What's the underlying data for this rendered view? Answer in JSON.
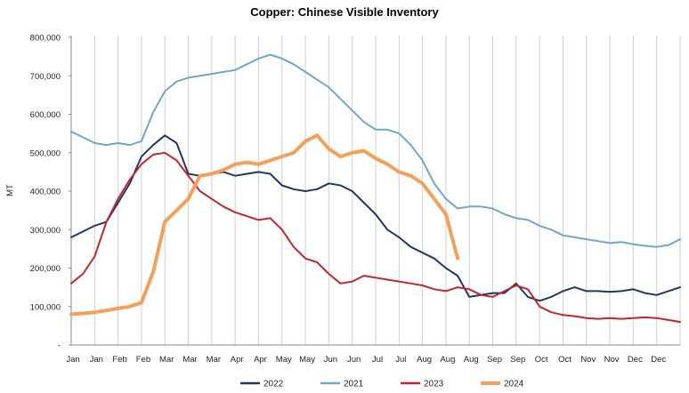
{
  "chart_data": {
    "type": "line",
    "title": "Copper: Chinese Visible Inventory",
    "xlabel": "",
    "ylabel": "MT",
    "ylim": [
      0,
      800000
    ],
    "yticks": [
      0,
      100000,
      200000,
      300000,
      400000,
      500000,
      600000,
      700000,
      800000
    ],
    "ytick_labels": [
      "-",
      "100,000",
      "200,000",
      "300,000",
      "400,000",
      "500,000",
      "600,000",
      "700,000",
      "800,000"
    ],
    "xlim": [
      0,
      52
    ],
    "xtick_labels": [
      "Jan",
      "Jan",
      "Feb",
      "Feb",
      "Mar",
      "Mar",
      "Mar",
      "Apr",
      "Apr",
      "May",
      "May",
      "Jun",
      "Jun",
      "Jul",
      "Jul",
      "Aug",
      "Aug",
      "Aug",
      "Sep",
      "Sep",
      "Oct",
      "Oct",
      "Nov",
      "Nov",
      "Dec",
      "Dec"
    ],
    "grid": "vertical",
    "legend_position": "bottom",
    "series": [
      {
        "name": "2022",
        "color": "#1f3864",
        "x": [
          0,
          1,
          2,
          3,
          4,
          5,
          6,
          7,
          8,
          9,
          10,
          11,
          12,
          13,
          14,
          15,
          16,
          17,
          18,
          19,
          20,
          21,
          22,
          23,
          24,
          25,
          26,
          27,
          28,
          29,
          30,
          31,
          32,
          33,
          34,
          35,
          36,
          37,
          38,
          39,
          40,
          41,
          42,
          43,
          44,
          45,
          46,
          47,
          48,
          49,
          50,
          51,
          52
        ],
        "values": [
          280000,
          295000,
          310000,
          320000,
          370000,
          420000,
          490000,
          520000,
          545000,
          525000,
          445000,
          440000,
          445000,
          450000,
          440000,
          445000,
          450000,
          445000,
          415000,
          405000,
          400000,
          405000,
          420000,
          415000,
          400000,
          370000,
          340000,
          300000,
          280000,
          255000,
          240000,
          225000,
          200000,
          180000,
          125000,
          130000,
          135000,
          135000,
          160000,
          125000,
          115000,
          125000,
          140000,
          150000,
          140000,
          140000,
          138000,
          140000,
          145000,
          135000,
          130000,
          140000,
          150000
        ]
      },
      {
        "name": "2021",
        "color": "#6fa6c9",
        "x": [
          0,
          1,
          2,
          3,
          4,
          5,
          6,
          7,
          8,
          9,
          10,
          11,
          12,
          13,
          14,
          15,
          16,
          17,
          18,
          19,
          20,
          21,
          22,
          23,
          24,
          25,
          26,
          27,
          28,
          29,
          30,
          31,
          32,
          33,
          34,
          35,
          36,
          37,
          38,
          39,
          40,
          41,
          42,
          43,
          44,
          45,
          46,
          47,
          48,
          49,
          50,
          51,
          52
        ],
        "values": [
          555000,
          540000,
          525000,
          520000,
          525000,
          520000,
          530000,
          605000,
          660000,
          685000,
          695000,
          700000,
          705000,
          710000,
          715000,
          730000,
          745000,
          755000,
          745000,
          730000,
          710000,
          690000,
          670000,
          640000,
          610000,
          580000,
          560000,
          560000,
          550000,
          520000,
          480000,
          420000,
          380000,
          355000,
          360000,
          360000,
          355000,
          340000,
          330000,
          325000,
          310000,
          300000,
          285000,
          280000,
          275000,
          270000,
          265000,
          268000,
          262000,
          258000,
          255000,
          260000,
          275000
        ]
      },
      {
        "name": "2023",
        "color": "#c0272d",
        "x": [
          0,
          1,
          2,
          3,
          4,
          5,
          6,
          7,
          8,
          9,
          10,
          11,
          12,
          13,
          14,
          15,
          16,
          17,
          18,
          19,
          20,
          21,
          22,
          23,
          24,
          25,
          26,
          27,
          28,
          29,
          30,
          31,
          32,
          33,
          34,
          35,
          36,
          37,
          38,
          39,
          40,
          41,
          42,
          43,
          44,
          45,
          46,
          47,
          48,
          49,
          50,
          51,
          52
        ],
        "values": [
          160000,
          185000,
          230000,
          320000,
          380000,
          430000,
          470000,
          495000,
          500000,
          480000,
          440000,
          400000,
          380000,
          360000,
          345000,
          335000,
          325000,
          330000,
          300000,
          255000,
          225000,
          215000,
          185000,
          160000,
          165000,
          180000,
          175000,
          170000,
          165000,
          160000,
          155000,
          145000,
          140000,
          150000,
          145000,
          130000,
          125000,
          140000,
          155000,
          145000,
          100000,
          85000,
          78000,
          75000,
          70000,
          68000,
          70000,
          68000,
          70000,
          72000,
          70000,
          65000,
          60000
        ]
      },
      {
        "name": "2024",
        "color": "#f4a05a",
        "x": [
          0,
          1,
          2,
          3,
          4,
          5,
          6,
          7,
          8,
          9,
          10,
          11,
          12,
          13,
          14,
          15,
          16,
          17,
          18,
          19,
          20,
          21,
          22,
          23,
          24,
          25,
          26,
          27,
          28,
          29,
          30,
          31,
          32,
          33
        ],
        "values": [
          80000,
          82000,
          85000,
          90000,
          95000,
          100000,
          110000,
          190000,
          320000,
          350000,
          380000,
          440000,
          445000,
          455000,
          470000,
          475000,
          470000,
          480000,
          490000,
          500000,
          530000,
          545000,
          510000,
          490000,
          500000,
          505000,
          485000,
          470000,
          450000,
          440000,
          420000,
          380000,
          340000,
          225000
        ]
      }
    ]
  }
}
